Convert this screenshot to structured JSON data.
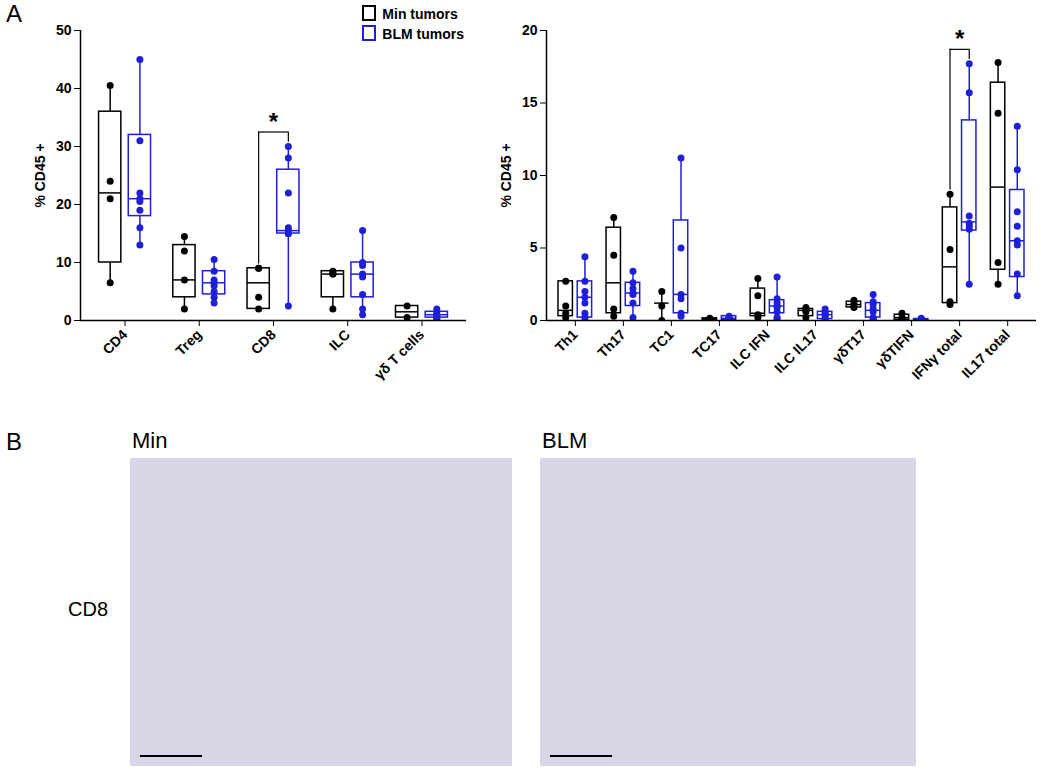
{
  "chart_data": [
    {
      "type": "box",
      "ylabel": "% CD45 +",
      "ylim": [
        0,
        50
      ],
      "yticks": [
        0,
        10,
        20,
        30,
        40,
        50
      ],
      "legend": "top-right",
      "categories": [
        "CD4",
        "Treg",
        "CD8",
        "ILC",
        "γδ T cells"
      ],
      "series": [
        {
          "name": "Min tumors",
          "color": "#000000",
          "values": [
            [
              40.5,
              24,
              21,
              6.5
            ],
            [
              14.5,
              12,
              7,
              2
            ],
            [
              9,
              9,
              4,
              2
            ],
            [
              8.5,
              8,
              8,
              2
            ],
            [
              2.5,
              0.5
            ]
          ],
          "boxes": [
            [
              6.5,
              10,
              22,
              36,
              40.5
            ],
            [
              2,
              4,
              7,
              13,
              14.5
            ],
            [
              2,
              2,
              6.5,
              9,
              9
            ],
            [
              2,
              4,
              8,
              8.5,
              8.5
            ],
            [
              0.5,
              0.5,
              1.5,
              2.5,
              2.5
            ]
          ]
        },
        {
          "name": "BLM tumors",
          "color": "#1f1fd6",
          "values": [
            [
              45,
              31,
              22,
              21,
              20.5,
              19,
              16,
              13
            ],
            [
              10.5,
              8.5,
              7,
              6.5,
              6,
              5,
              4,
              3
            ],
            [
              30,
              28,
              22,
              16,
              15.5,
              15,
              15,
              2.5
            ],
            [
              15.5,
              10,
              9.5,
              8,
              7.5,
              4.5,
              2,
              1
            ],
            [
              2,
              1.5,
              1,
              1,
              0.8,
              0.5,
              0.5,
              0.3
            ]
          ],
          "boxes": [
            [
              13,
              18,
              21,
              32,
              45
            ],
            [
              3,
              4.5,
              6.5,
              8.5,
              10.5
            ],
            [
              2.5,
              15,
              15.5,
              26,
              30
            ],
            [
              1,
              4,
              8,
              10,
              15.5
            ],
            [
              0.3,
              0.5,
              1,
              1.5,
              2
            ]
          ]
        }
      ],
      "annotations": [
        {
          "text": "*",
          "category": "CD8"
        }
      ]
    },
    {
      "type": "box",
      "ylabel": "% CD45 +",
      "ylim": [
        0,
        20
      ],
      "yticks": [
        0,
        5,
        10,
        15,
        20
      ],
      "categories": [
        "Th1",
        "Th17",
        "TC1",
        "TC17",
        "ILC IFN",
        "ILC IL17",
        "γδT17",
        "γδTIFN",
        "IFNγ total",
        "IL17 total"
      ],
      "series": [
        {
          "name": "Min tumors",
          "color": "#000000",
          "values": [
            [
              2.7,
              1,
              0.5,
              0.2
            ],
            [
              7.1,
              4.5,
              0.8,
              0.3
            ],
            [
              2,
              1,
              0
            ],
            [
              0.15,
              0.1,
              0.05
            ],
            [
              2.9,
              1.7,
              0.4,
              0.2
            ],
            [
              0.9,
              0.7,
              0.6,
              0.2
            ],
            [
              1.4,
              1.2,
              1,
              0.9
            ],
            [
              0.5,
              0.2,
              0.05
            ],
            [
              8.7,
              4.9,
              1.3,
              1.1
            ],
            [
              17.8,
              14.3,
              4,
              2.5
            ]
          ],
          "boxes": [
            [
              0.2,
              0.3,
              0.7,
              2.7,
              2.7
            ],
            [
              0.3,
              0.5,
              2.6,
              6.4,
              7.1
            ],
            [
              0,
              1.2,
              1.2,
              1.2,
              2
            ],
            [
              0.05,
              0.05,
              0.1,
              0.15,
              0.15
            ],
            [
              0.2,
              0.3,
              0.5,
              2.2,
              2.9
            ],
            [
              0.2,
              0.3,
              0.7,
              0.8,
              0.9
            ],
            [
              0.9,
              0.9,
              1.1,
              1.3,
              1.4
            ],
            [
              0.05,
              0.05,
              0.2,
              0.4,
              0.5
            ],
            [
              1.1,
              1.2,
              3.7,
              7.8,
              8.7
            ],
            [
              2.5,
              3.5,
              9.2,
              16.4,
              17.8
            ]
          ]
        },
        {
          "name": "BLM tumors",
          "color": "#1f1fd6",
          "values": [
            [
              4.4,
              2.7,
              2,
              1.6,
              1.2,
              0.5,
              0.2,
              0
            ],
            [
              3.4,
              2.6,
              2.2,
              1.9,
              1.8,
              1.2,
              0.2
            ],
            [
              11.2,
              5,
              1.8,
              1.5,
              0.5,
              0.3
            ],
            [
              0.3,
              0.2,
              0.15,
              0.1,
              0.1,
              0.05
            ],
            [
              3,
              1.5,
              1.2,
              1,
              0.9,
              0.6,
              0.2,
              0.1
            ],
            [
              0.8,
              0.6,
              0.5,
              0.4,
              0.3,
              0.1,
              0
            ],
            [
              1.8,
              1.3,
              1.1,
              0.8,
              0.6,
              0.2,
              0.1,
              0
            ],
            [
              0.15,
              0.1,
              0.05,
              0.05,
              0.02,
              0
            ],
            [
              17.7,
              15.7,
              7.2,
              6.7,
              6.5,
              6.3,
              2.5
            ],
            [
              13.4,
              10.4,
              7.5,
              6.5,
              5.5,
              5.2,
              3.2,
              1.7
            ]
          ],
          "boxes": [
            [
              0,
              0.2,
              1.6,
              2.7,
              4.4
            ],
            [
              0.2,
              1,
              1.9,
              2.6,
              3.4
            ],
            [
              0.3,
              0.5,
              1.8,
              6.9,
              11.2
            ],
            [
              0.05,
              0.05,
              0.15,
              0.3,
              0.3
            ],
            [
              0.1,
              0.5,
              1,
              1.4,
              3
            ],
            [
              0,
              0.1,
              0.4,
              0.6,
              0.8
            ],
            [
              0,
              0.2,
              0.7,
              1.2,
              1.8
            ],
            [
              0,
              0,
              0.05,
              0.1,
              0.15
            ],
            [
              2.5,
              6.2,
              6.8,
              13.8,
              17.7
            ],
            [
              1.7,
              3,
              5.5,
              9,
              13.4
            ]
          ]
        }
      ],
      "annotations": [
        {
          "text": "*",
          "category": "IFNγ total"
        }
      ]
    }
  ],
  "panel_labels": [
    "A",
    "B"
  ],
  "images": {
    "row_label": "CD8",
    "titles": [
      "Min",
      "BLM"
    ]
  }
}
